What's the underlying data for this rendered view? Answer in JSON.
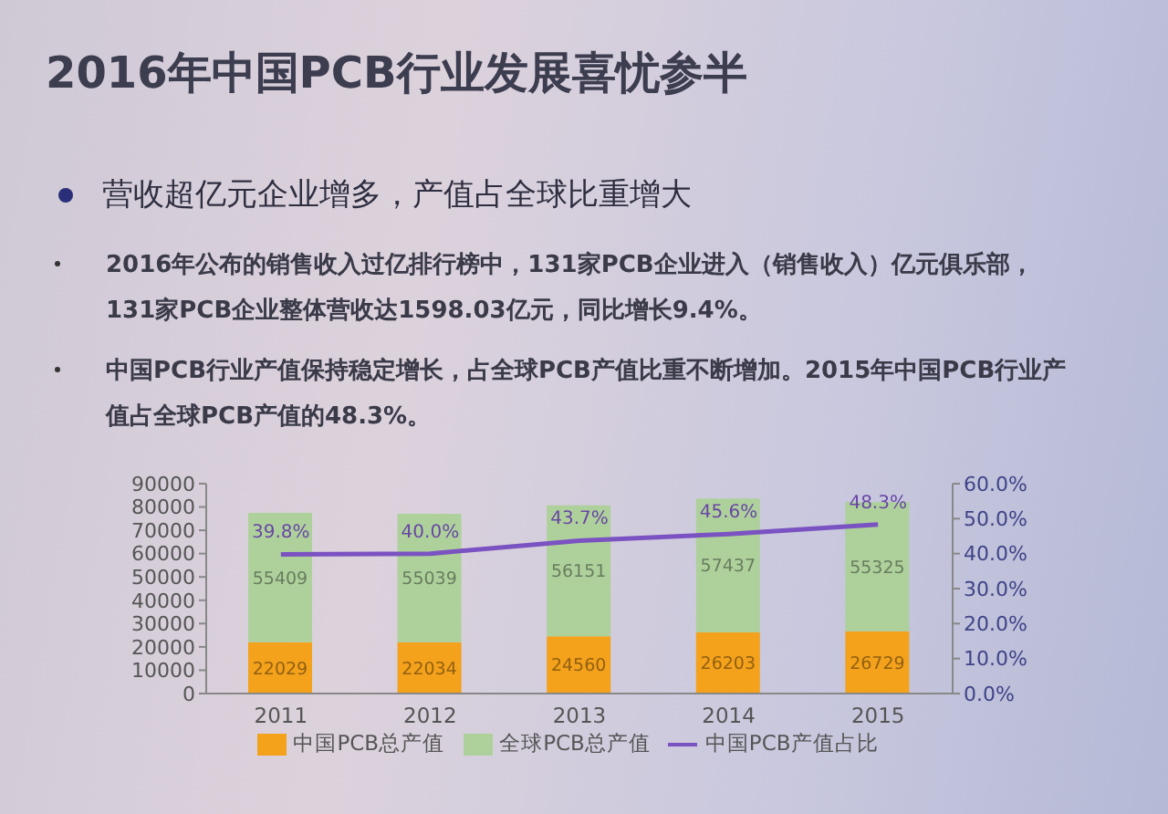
{
  "chart_data": {
    "type": "bar",
    "title": "2016年中国PCB行业发展喜忧参半",
    "subtitle": "营收超亿元企业增多，产值占全球比重增大",
    "annotations": [
      "2016年公布的销售收入过亿排行榜中，131家PCB企业进入（销售收入）亿元俱乐部，131家PCB企业整体营收达1598.03亿元，同比增长9.4%。",
      "中国PCB行业产值保持稳定增长，占全球PCB产值比重不断增加。2015年中国PCB行业产值占全球PCB产值的48.3%。"
    ],
    "categories": [
      "2011",
      "2012",
      "2013",
      "2014",
      "2015"
    ],
    "stacked": true,
    "series": [
      {
        "name": "中国PCB总产值",
        "color": "#f4a11c",
        "values": [
          22029,
          22034,
          24560,
          26203,
          26729
        ],
        "value_labels": [
          "22029",
          "22034",
          "24560",
          "26203",
          "26729"
        ]
      },
      {
        "name": "全球PCB总产值",
        "color": "#aed19c",
        "values": [
          55409,
          55039,
          56151,
          57437,
          55325
        ],
        "value_labels": [
          "55409",
          "55039",
          "56151",
          "57437",
          "55325"
        ]
      },
      {
        "name": "中国PCB产值占比",
        "type": "line",
        "axis": "y2",
        "color": "#7b52c1",
        "values": [
          39.8,
          40.0,
          43.7,
          45.6,
          48.3
        ],
        "value_labels": [
          "39.8%",
          "40.0%",
          "43.7%",
          "45.6%",
          "48.3%"
        ]
      }
    ],
    "ylim": [
      0,
      90000
    ],
    "yticks": [
      0,
      10000,
      20000,
      30000,
      40000,
      50000,
      60000,
      70000,
      80000,
      90000
    ],
    "y2lim": [
      0,
      60
    ],
    "y2ticks": [
      {
        "value": 0,
        "label": "0.0%"
      },
      {
        "value": 10,
        "label": "10.0%"
      },
      {
        "value": 20,
        "label": "20.0%"
      },
      {
        "value": 30,
        "label": "30.0%"
      },
      {
        "value": 40,
        "label": "40.0%"
      },
      {
        "value": 50,
        "label": "50.0%"
      },
      {
        "value": 60,
        "label": "60.0%"
      }
    ],
    "legend": "bottom"
  }
}
